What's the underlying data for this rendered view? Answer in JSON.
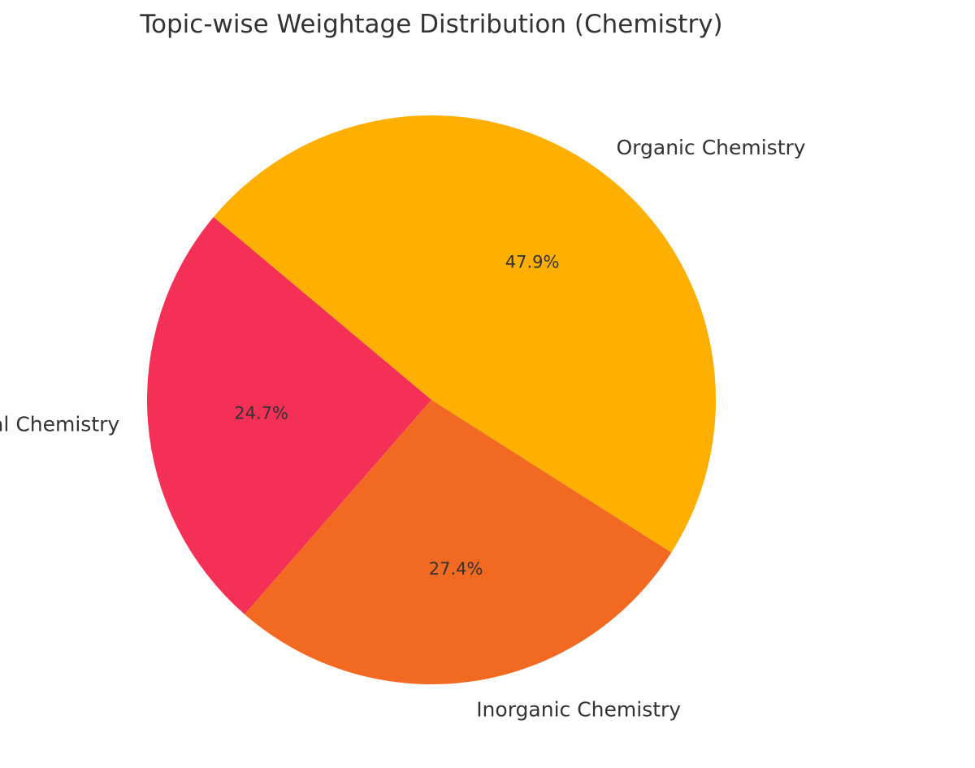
{
  "chart_data": {
    "type": "pie",
    "title": "Topic-wise Weightage Distribution (Chemistry)",
    "categories": [
      "Physical Chemistry",
      "Inorganic Chemistry",
      "Organic Chemistry"
    ],
    "values": [
      24.7,
      27.4,
      47.9
    ],
    "value_labels": [
      "24.7%",
      "27.4%",
      "47.9%"
    ],
    "colors": [
      "#F43056",
      "#F26922",
      "#FFAF00"
    ],
    "start_angle_deg": 140,
    "direction": "counterclockwise",
    "legend": "none"
  }
}
